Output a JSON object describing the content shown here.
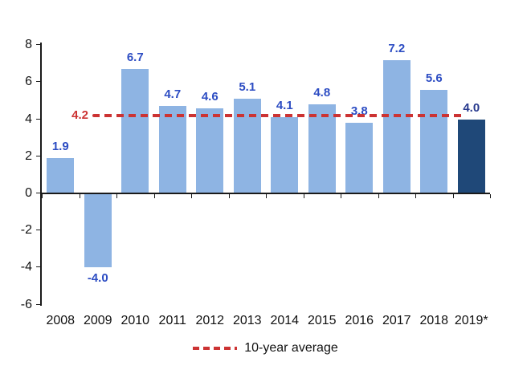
{
  "chart_data": {
    "type": "bar",
    "title": "",
    "xlabel": "",
    "ylabel": "",
    "categories": [
      "2008",
      "2009",
      "2010",
      "2011",
      "2012",
      "2013",
      "2014",
      "2015",
      "2016",
      "2017",
      "2018",
      "2019*"
    ],
    "values": [
      1.9,
      -4.0,
      6.7,
      4.7,
      4.6,
      5.1,
      4.1,
      4.8,
      3.8,
      7.2,
      5.6,
      4.0
    ],
    "bar_labels": [
      "1.9",
      "-4.0",
      "6.7",
      "4.7",
      "4.6",
      "5.1",
      "4.1",
      "4.8",
      "3.8",
      "7.2",
      "5.6",
      "4.0"
    ],
    "highlight_index": 11,
    "average_line": {
      "value": 4.2,
      "label": "4.2"
    },
    "legend": {
      "label": "10-year average",
      "position": "bottom-center"
    },
    "ylim": [
      -6,
      8
    ],
    "yticks": [
      8,
      6,
      4,
      2,
      0,
      -2,
      -4,
      -6
    ],
    "grid": "off",
    "colors": {
      "bar": "#8EB4E3",
      "highlight_bar": "#1F4878",
      "bar_label": "#2D4DC3",
      "highlight_bar_label": "#283A8E",
      "average_line": "#CC3333",
      "axis": "#1A1A1A",
      "tick_text": "#111111"
    }
  }
}
